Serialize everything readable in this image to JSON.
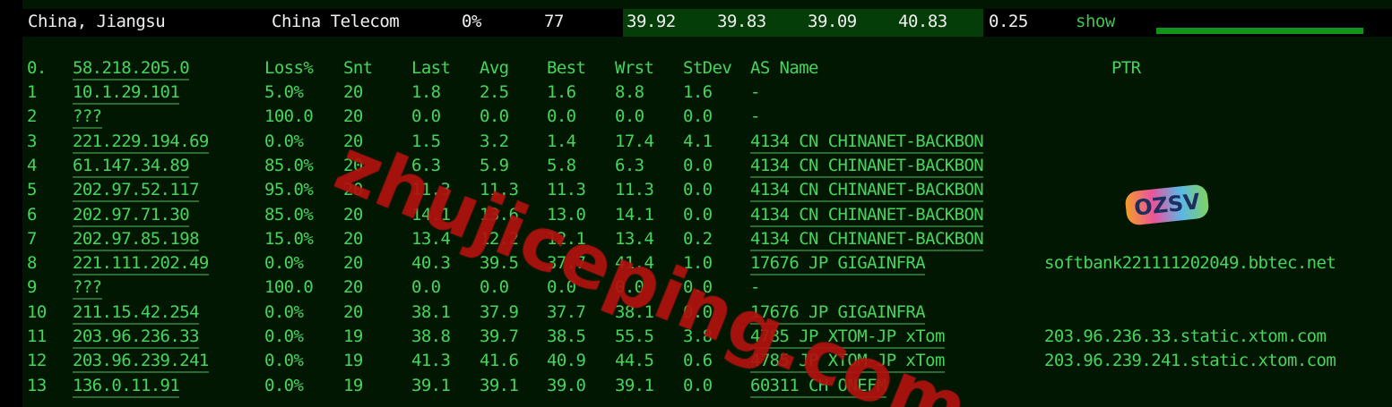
{
  "summary": {
    "location": "China, Jiangsu",
    "isp": "China Telecom",
    "loss": "0%",
    "sent": "77",
    "last": "39.92",
    "avg": "39.83",
    "best": "39.09",
    "worst": "40.83",
    "stdev": "0.25",
    "action": "show",
    "progress": 1.0
  },
  "header": {
    "idx": "0.",
    "host": "58.218.205.0",
    "loss": "Loss%",
    "snt": "Snt",
    "last": "Last",
    "avg": "Avg",
    "best": "Best",
    "wrst": "Wrst",
    "stdev": "StDev",
    "as": "AS Name",
    "ptr": "PTR"
  },
  "rows": [
    {
      "idx": "1",
      "host": "10.1.29.101",
      "loss": "5.0%",
      "snt": "20",
      "last": "1.8",
      "avg": "2.5",
      "best": "1.6",
      "wrst": "8.8",
      "stdev": "1.6",
      "as": "-",
      "ptr": ""
    },
    {
      "idx": "2",
      "host": "???",
      "loss": "100.0",
      "snt": "20",
      "last": "0.0",
      "avg": "0.0",
      "best": "0.0",
      "wrst": "0.0",
      "stdev": "0.0",
      "as": "-",
      "ptr": ""
    },
    {
      "idx": "3",
      "host": "221.229.194.69",
      "loss": "0.0%",
      "snt": "20",
      "last": "1.5",
      "avg": "3.2",
      "best": "1.4",
      "wrst": "17.4",
      "stdev": "4.1",
      "as": "4134  CN CHINANET-BACKBON",
      "ptr": ""
    },
    {
      "idx": "4",
      "host": "61.147.34.89",
      "loss": "85.0%",
      "snt": "20",
      "last": "6.3",
      "avg": "5.9",
      "best": "5.8",
      "wrst": "6.3",
      "stdev": "0.0",
      "as": "4134  CN CHINANET-BACKBON",
      "ptr": ""
    },
    {
      "idx": "5",
      "host": "202.97.52.117",
      "loss": "95.0%",
      "snt": "20",
      "last": "11.3",
      "avg": "11.3",
      "best": "11.3",
      "wrst": "11.3",
      "stdev": "0.0",
      "as": "4134  CN CHINANET-BACKBON",
      "ptr": ""
    },
    {
      "idx": "6",
      "host": "202.97.71.30",
      "loss": "85.0%",
      "snt": "20",
      "last": "14.1",
      "avg": "13.6",
      "best": "13.0",
      "wrst": "14.1",
      "stdev": "0.0",
      "as": "4134  CN CHINANET-BACKBON",
      "ptr": ""
    },
    {
      "idx": "7",
      "host": "202.97.85.198",
      "loss": "15.0%",
      "snt": "20",
      "last": "13.4",
      "avg": "12.2",
      "best": "12.1",
      "wrst": "13.4",
      "stdev": "0.2",
      "as": "4134  CN CHINANET-BACKBON",
      "ptr": ""
    },
    {
      "idx": "8",
      "host": "221.111.202.49",
      "loss": "0.0%",
      "snt": "20",
      "last": "40.3",
      "avg": "39.5",
      "best": "37.7",
      "wrst": "41.4",
      "stdev": "1.0",
      "as": "17676 JP GIGAINFRA",
      "ptr": "softbank221111202049.bbtec.net"
    },
    {
      "idx": "9",
      "host": "???",
      "loss": "100.0",
      "snt": "20",
      "last": "0.0",
      "avg": "0.0",
      "best": "0.0",
      "wrst": "0.0",
      "stdev": "0.0",
      "as": "-",
      "ptr": ""
    },
    {
      "idx": "10",
      "host": "211.15.42.254",
      "loss": "0.0%",
      "snt": "20",
      "last": "38.1",
      "avg": "37.9",
      "best": "37.7",
      "wrst": "38.1",
      "stdev": "0.0",
      "as": "17676 JP GIGAINFRA",
      "ptr": ""
    },
    {
      "idx": "11",
      "host": "203.96.236.33",
      "loss": "0.0%",
      "snt": "19",
      "last": "38.8",
      "avg": "39.7",
      "best": "38.5",
      "wrst": "55.5",
      "stdev": "3.8",
      "as": "4785  JP XTOM-JP xTom",
      "ptr": "203.96.236.33.static.xtom.com"
    },
    {
      "idx": "12",
      "host": "203.96.239.241",
      "loss": "0.0%",
      "snt": "19",
      "last": "41.3",
      "avg": "41.6",
      "best": "40.9",
      "wrst": "44.5",
      "stdev": "0.6",
      "as": "4785  JP XTOM-JP xTom",
      "ptr": "203.96.239.241.static.xtom.com"
    },
    {
      "idx": "13",
      "host": "136.0.11.91",
      "loss": "0.0%",
      "snt": "19",
      "last": "39.1",
      "avg": "39.1",
      "best": "39.0",
      "wrst": "39.1",
      "stdev": "0.0",
      "as": "60311 CH ONEFM",
      "ptr": ""
    }
  ],
  "watermark": "zhujiceping.com",
  "logo": "OZSV",
  "colors": {
    "text": "#47d45c",
    "background": "#021702",
    "watermark": "#b0120e",
    "bar": "#12931b"
  }
}
